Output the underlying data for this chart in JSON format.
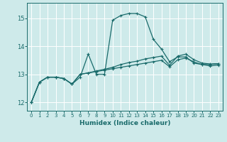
{
  "xlabel": "Humidex (Indice chaleur)",
  "background_color": "#ceeaea",
  "grid_color": "#ffffff",
  "line_color": "#1a6b6b",
  "xlim": [
    -0.5,
    23.5
  ],
  "ylim": [
    11.7,
    15.55
  ],
  "yticks": [
    12,
    13,
    14,
    15
  ],
  "xticks": [
    0,
    1,
    2,
    3,
    4,
    5,
    6,
    7,
    8,
    9,
    10,
    11,
    12,
    13,
    14,
    15,
    16,
    17,
    18,
    19,
    20,
    21,
    22,
    23
  ],
  "series1_x": [
    0,
    1,
    2,
    3,
    4,
    5,
    6,
    7,
    8,
    9,
    10,
    11,
    12,
    13,
    14,
    15,
    16,
    17,
    18,
    19,
    20,
    21,
    22,
    23
  ],
  "series1_y": [
    12.0,
    12.72,
    12.9,
    12.9,
    12.85,
    12.65,
    12.9,
    13.72,
    13.0,
    13.0,
    14.93,
    15.1,
    15.17,
    15.17,
    15.05,
    14.25,
    13.9,
    13.45,
    13.62,
    13.62,
    13.4,
    13.35,
    13.35,
    13.38
  ],
  "series2_x": [
    0,
    1,
    2,
    3,
    4,
    5,
    6,
    7,
    8,
    9,
    10,
    11,
    12,
    13,
    14,
    15,
    16,
    17,
    18,
    19,
    20,
    21,
    22,
    23
  ],
  "series2_y": [
    12.0,
    12.72,
    12.9,
    12.9,
    12.85,
    12.65,
    13.0,
    13.05,
    13.12,
    13.18,
    13.25,
    13.35,
    13.42,
    13.47,
    13.55,
    13.6,
    13.65,
    13.32,
    13.65,
    13.72,
    13.52,
    13.4,
    13.37,
    13.38
  ],
  "series3_x": [
    0,
    1,
    2,
    3,
    4,
    5,
    6,
    7,
    8,
    9,
    10,
    11,
    12,
    13,
    14,
    15,
    16,
    17,
    18,
    19,
    20,
    21,
    22,
    23
  ],
  "series3_y": [
    12.0,
    12.72,
    12.9,
    12.9,
    12.85,
    12.65,
    13.0,
    13.05,
    13.1,
    13.15,
    13.2,
    13.25,
    13.3,
    13.35,
    13.4,
    13.45,
    13.5,
    13.27,
    13.52,
    13.58,
    13.44,
    13.35,
    13.3,
    13.33
  ]
}
